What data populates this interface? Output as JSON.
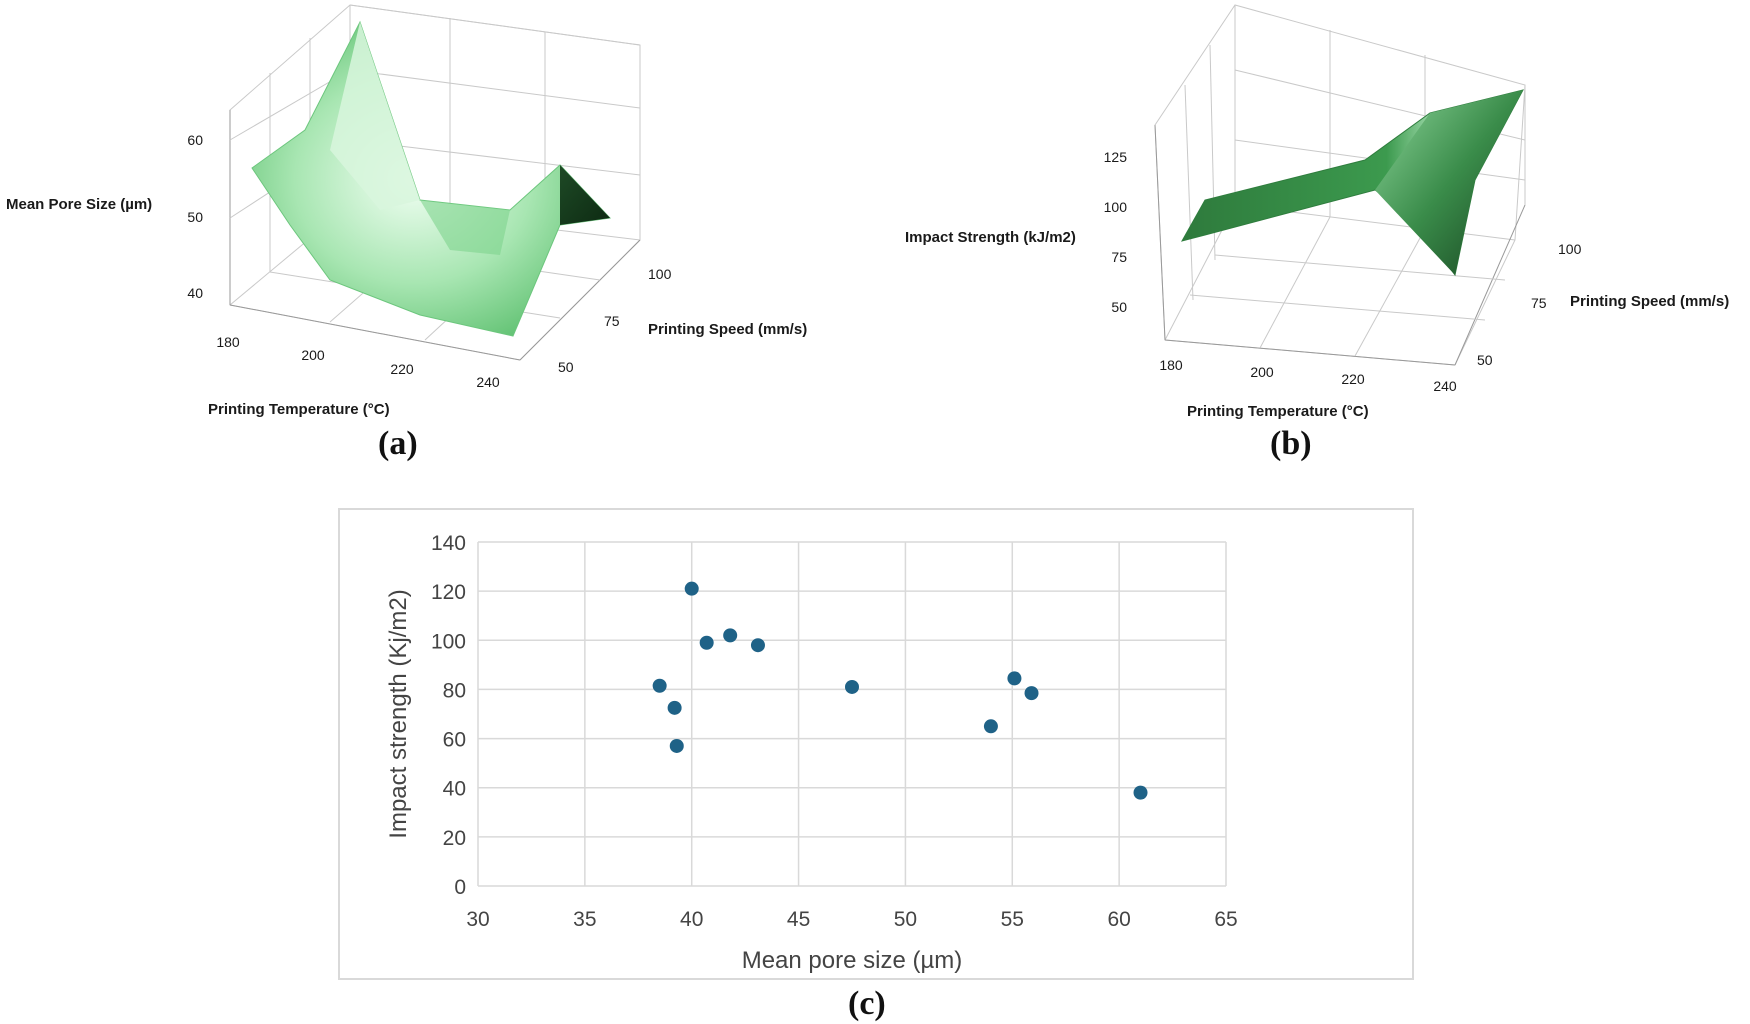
{
  "chart_data": [
    {
      "panel": "a",
      "type": "surface",
      "caption": "(a)",
      "zlabel": "Mean Pore Size (µm)",
      "xlabel": "Printing Temperature (°C)",
      "ylabel": "Printing Speed (mm/s)",
      "x_ticks": [
        "180",
        "200",
        "220",
        "240"
      ],
      "y_ticks": [
        "50",
        "75",
        "100"
      ],
      "z_ticks": [
        "40",
        "50",
        "60"
      ],
      "zlim": [
        36,
        65
      ],
      "surface_color": "#6fcf7f"
    },
    {
      "panel": "b",
      "type": "surface",
      "caption": "(b)",
      "zlabel": "Impact Strength (kJ/m2)",
      "xlabel": "Printing Temperature (°C)",
      "ylabel": "Printing Speed (mm/s)",
      "x_ticks": [
        "180",
        "200",
        "220",
        "240"
      ],
      "y_ticks": [
        "50",
        "75",
        "100"
      ],
      "z_ticks": [
        "50",
        "75",
        "100",
        "125"
      ],
      "zlim": [
        38,
        130
      ],
      "surface_color": "#3f9c52"
    },
    {
      "panel": "c",
      "type": "scatter",
      "caption": "(c)",
      "xlabel": "Mean pore size (µm)",
      "ylabel": "Impact strength (Kj/m2)",
      "xlim": [
        30,
        65
      ],
      "ylim": [
        0,
        140
      ],
      "x_ticks": [
        "30",
        "35",
        "40",
        "45",
        "50",
        "55",
        "60",
        "65"
      ],
      "y_ticks": [
        "0",
        "20",
        "40",
        "60",
        "80",
        "100",
        "120",
        "140"
      ],
      "marker_color": "#1f6287",
      "points": [
        {
          "x": 38.5,
          "y": 81.5
        },
        {
          "x": 39.2,
          "y": 72.5
        },
        {
          "x": 39.3,
          "y": 57
        },
        {
          "x": 40.0,
          "y": 121
        },
        {
          "x": 40.7,
          "y": 99
        },
        {
          "x": 41.8,
          "y": 102
        },
        {
          "x": 43.1,
          "y": 98
        },
        {
          "x": 47.5,
          "y": 81
        },
        {
          "x": 54.0,
          "y": 65
        },
        {
          "x": 55.1,
          "y": 84.5
        },
        {
          "x": 55.9,
          "y": 78.5
        },
        {
          "x": 61.0,
          "y": 38
        }
      ]
    }
  ]
}
